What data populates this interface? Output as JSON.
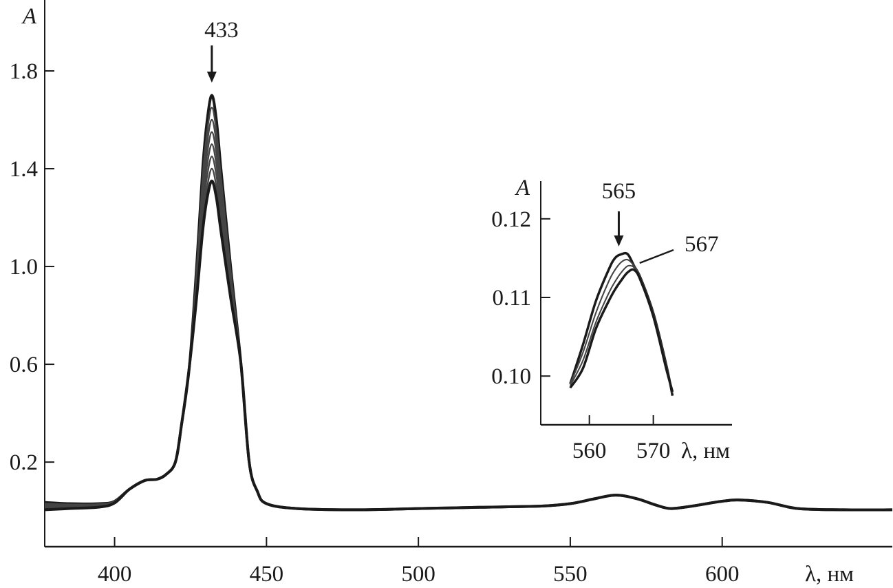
{
  "chart_data": [
    {
      "type": "line",
      "xlabel": "λ, нм",
      "ylabel": "A",
      "xlim": [
        377,
        656
      ],
      "ylim": [
        -0.146,
        2.09
      ],
      "xticks": [
        400,
        450,
        500,
        550,
        600
      ],
      "yticks": [
        0.2,
        0.6,
        1.0,
        1.4,
        1.8
      ],
      "ytick_labels": [
        "0.2",
        "0.6",
        "1.0",
        "1.4",
        "1.8"
      ],
      "grid": false,
      "color": "#1a1a1a",
      "annotations": [
        {
          "text": "433",
          "x": 432,
          "arrow": "down"
        }
      ],
      "x": [
        377,
        385,
        395,
        400,
        405,
        410,
        414,
        417,
        420,
        422,
        424.7,
        427,
        429,
        430.5,
        432,
        433.5,
        435,
        438.2,
        441.6,
        444.3,
        447,
        450,
        460,
        480,
        500,
        520,
        540,
        550,
        558,
        565,
        572,
        578,
        583,
        590,
        600,
        606,
        615,
        625,
        640,
        656
      ],
      "series": [
        {
          "values": [
            0.035,
            0.03,
            0.03,
            0.04,
            0.09,
            0.125,
            0.13,
            0.15,
            0.2,
            0.35,
            0.6,
            1.0,
            1.4,
            1.6,
            1.7,
            1.6,
            1.4,
            1.0,
            0.6,
            0.2,
            0.08,
            0.03,
            0.01,
            0.005,
            0.01,
            0.015,
            0.02,
            0.03,
            0.05,
            0.065,
            0.05,
            0.025,
            0.01,
            0.02,
            0.04,
            0.045,
            0.035,
            0.01,
            0.005,
            0.005
          ]
        },
        {
          "values": [
            0.03,
            0.027,
            0.028,
            0.04,
            0.09,
            0.125,
            0.13,
            0.15,
            0.2,
            0.35,
            0.6,
            0.982,
            1.364,
            1.555,
            1.65,
            1.555,
            1.364,
            0.982,
            0.6,
            0.2,
            0.08,
            0.03,
            0.01,
            0.005,
            0.01,
            0.015,
            0.02,
            0.03,
            0.05,
            0.065,
            0.05,
            0.025,
            0.01,
            0.02,
            0.04,
            0.045,
            0.035,
            0.01,
            0.005,
            0.005
          ]
        },
        {
          "values": [
            0.025,
            0.024,
            0.026,
            0.038,
            0.09,
            0.125,
            0.13,
            0.15,
            0.2,
            0.35,
            0.6,
            0.964,
            1.327,
            1.509,
            1.6,
            1.509,
            1.327,
            0.964,
            0.6,
            0.2,
            0.08,
            0.03,
            0.01,
            0.005,
            0.01,
            0.015,
            0.02,
            0.03,
            0.05,
            0.065,
            0.05,
            0.025,
            0.01,
            0.02,
            0.04,
            0.045,
            0.035,
            0.01,
            0.005,
            0.005
          ]
        },
        {
          "values": [
            0.02,
            0.021,
            0.024,
            0.037,
            0.09,
            0.125,
            0.13,
            0.15,
            0.2,
            0.35,
            0.6,
            0.945,
            1.291,
            1.464,
            1.55,
            1.464,
            1.291,
            0.945,
            0.6,
            0.2,
            0.08,
            0.03,
            0.01,
            0.005,
            0.01,
            0.015,
            0.02,
            0.03,
            0.05,
            0.065,
            0.05,
            0.025,
            0.01,
            0.02,
            0.04,
            0.045,
            0.035,
            0.01,
            0.005,
            0.005
          ]
        },
        {
          "values": [
            0.015,
            0.018,
            0.022,
            0.036,
            0.09,
            0.125,
            0.13,
            0.15,
            0.2,
            0.35,
            0.6,
            0.927,
            1.255,
            1.418,
            1.5,
            1.418,
            1.255,
            0.927,
            0.6,
            0.2,
            0.08,
            0.03,
            0.01,
            0.005,
            0.01,
            0.015,
            0.02,
            0.03,
            0.05,
            0.065,
            0.05,
            0.025,
            0.01,
            0.02,
            0.04,
            0.045,
            0.035,
            0.01,
            0.005,
            0.005
          ]
        },
        {
          "values": [
            0.012,
            0.015,
            0.02,
            0.035,
            0.09,
            0.125,
            0.13,
            0.15,
            0.2,
            0.35,
            0.6,
            0.909,
            1.218,
            1.373,
            1.45,
            1.373,
            1.218,
            0.909,
            0.6,
            0.2,
            0.08,
            0.03,
            0.01,
            0.005,
            0.01,
            0.015,
            0.02,
            0.03,
            0.05,
            0.065,
            0.05,
            0.025,
            0.01,
            0.02,
            0.04,
            0.045,
            0.035,
            0.01,
            0.005,
            0.005
          ]
        },
        {
          "values": [
            0.008,
            0.012,
            0.018,
            0.034,
            0.09,
            0.125,
            0.13,
            0.15,
            0.2,
            0.35,
            0.6,
            0.891,
            1.182,
            1.327,
            1.4,
            1.327,
            1.182,
            0.891,
            0.6,
            0.2,
            0.08,
            0.03,
            0.01,
            0.005,
            0.01,
            0.015,
            0.02,
            0.03,
            0.05,
            0.065,
            0.05,
            0.025,
            0.01,
            0.02,
            0.04,
            0.045,
            0.035,
            0.01,
            0.005,
            0.005
          ]
        },
        {
          "values": [
            0.005,
            0.01,
            0.016,
            0.033,
            0.09,
            0.125,
            0.13,
            0.15,
            0.2,
            0.35,
            0.6,
            0.873,
            1.145,
            1.282,
            1.35,
            1.282,
            1.145,
            0.873,
            0.6,
            0.2,
            0.08,
            0.03,
            0.01,
            0.005,
            0.01,
            0.015,
            0.02,
            0.03,
            0.05,
            0.065,
            0.05,
            0.025,
            0.01,
            0.02,
            0.04,
            0.045,
            0.035,
            0.01,
            0.005,
            0.005
          ]
        }
      ]
    },
    {
      "type": "line",
      "placement": "inset",
      "xlabel": "λ, нм",
      "ylabel": "A",
      "xlim": [
        552.4,
        582.3
      ],
      "ylim": [
        0.0938,
        0.1248
      ],
      "xticks": [
        560,
        570
      ],
      "yticks": [
        0.1,
        0.11,
        0.12
      ],
      "ytick_labels": [
        "0.10",
        "0.11",
        "0.12"
      ],
      "grid": false,
      "color": "#1a1a1a",
      "annotations": [
        {
          "text": "565",
          "x": 564.6,
          "arrow": "down"
        },
        {
          "text": "567",
          "x": 567,
          "leader": true
        }
      ],
      "x": [
        557,
        559,
        561,
        563,
        564,
        565,
        566,
        567,
        568,
        570,
        572,
        573
      ],
      "series": [
        {
          "values": [
            0.099,
            0.104,
            0.1095,
            0.1135,
            0.115,
            0.1155,
            0.1155,
            0.114,
            0.1125,
            0.108,
            0.1015,
            0.0975
          ]
        },
        {
          "values": [
            0.099,
            0.103,
            0.108,
            0.112,
            0.1135,
            0.1145,
            0.1148,
            0.114,
            0.1125,
            0.108,
            0.1015,
            0.0978
          ]
        },
        {
          "values": [
            0.0988,
            0.102,
            0.1068,
            0.1105,
            0.112,
            0.1132,
            0.114,
            0.1138,
            0.1124,
            0.1078,
            0.1012,
            0.098
          ]
        },
        {
          "values": [
            0.0985,
            0.101,
            0.106,
            0.1095,
            0.111,
            0.1122,
            0.1132,
            0.1135,
            0.1122,
            0.1076,
            0.101,
            0.098
          ]
        }
      ]
    }
  ]
}
